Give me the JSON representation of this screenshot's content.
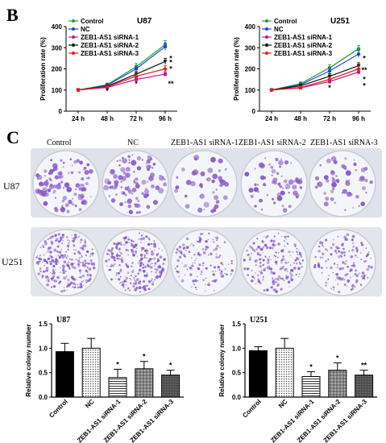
{
  "panel_b_letter": "B",
  "panel_c_letter": "C",
  "colors": {
    "Control": "#1aa039",
    "NC": "#2244cc",
    "ZEB1-AS1 siRNA-1": "#c2188a",
    "ZEB1-AS1 siRNA-2": "#111111",
    "ZEB1-AS1 siRNA-3": "#e0201c",
    "stain": "#8a5cc8",
    "plate_bg": "#eef0f4"
  },
  "photo": {
    "headers": [
      "Control",
      "NC",
      "ZEB1-AS1 siRNA-1",
      "ZEB1-AS1 siRNA-2",
      "ZEB1-AS1 siRNA-3"
    ],
    "rows": [
      "U87",
      "U251"
    ],
    "density_u87": [
      0.75,
      0.7,
      0.35,
      0.45,
      0.4
    ],
    "density_u251": [
      0.9,
      0.85,
      0.45,
      0.65,
      0.5
    ]
  },
  "chart_data": [
    {
      "type": "line",
      "title": "U87",
      "xlabel": "",
      "ylabel": "Proliferation rate (%)",
      "categories": [
        "24 h",
        "48 h",
        "72 h",
        "96 h"
      ],
      "ylim": [
        0,
        400
      ],
      "yticks": [
        0,
        100,
        200,
        300,
        400
      ],
      "legend_position": "top-left",
      "series": [
        {
          "name": "Control",
          "values": [
            100,
            125,
            210,
            315
          ],
          "errors": [
            4,
            8,
            15,
            18
          ],
          "marker": "circle"
        },
        {
          "name": "NC",
          "values": [
            100,
            122,
            200,
            305
          ],
          "errors": [
            4,
            8,
            14,
            18
          ],
          "marker": "circle"
        },
        {
          "name": "ZEB1-AS1 siRNA-1",
          "values": [
            100,
            112,
            150,
            175
          ],
          "errors": [
            4,
            6,
            10,
            12
          ],
          "marker": "square"
        },
        {
          "name": "ZEB1-AS1 siRNA-2",
          "values": [
            100,
            118,
            175,
            235
          ],
          "errors": [
            4,
            7,
            12,
            15
          ],
          "marker": "triangle"
        },
        {
          "name": "ZEB1-AS1 siRNA-3",
          "values": [
            100,
            115,
            165,
            200
          ],
          "errors": [
            4,
            6,
            11,
            14
          ],
          "marker": "diamond"
        }
      ],
      "annotations": [
        {
          "x": "48 h",
          "y": 95,
          "text": "*"
        },
        {
          "x": "72 h",
          "y": 130,
          "text": "*"
        },
        {
          "x": "96 h",
          "y": 250,
          "text": "*"
        },
        {
          "x": "96 h",
          "y": 230,
          "text": "*"
        },
        {
          "x": "96 h",
          "y": 200,
          "text": "*"
        },
        {
          "x": "96 h",
          "y": 130,
          "text": "**"
        }
      ]
    },
    {
      "type": "line",
      "title": "U251",
      "xlabel": "",
      "ylabel": "Proliferation rate (%)",
      "categories": [
        "24 h",
        "48 h",
        "72 h",
        "96 h"
      ],
      "ylim": [
        0,
        400
      ],
      "yticks": [
        0,
        100,
        200,
        300,
        400
      ],
      "legend_position": "top-left",
      "series": [
        {
          "name": "Control",
          "values": [
            100,
            130,
            205,
            295
          ],
          "errors": [
            4,
            8,
            15,
            16
          ],
          "marker": "circle"
        },
        {
          "name": "NC",
          "values": [
            100,
            125,
            190,
            270
          ],
          "errors": [
            4,
            8,
            15,
            16
          ],
          "marker": "circle"
        },
        {
          "name": "ZEB1-AS1 siRNA-1",
          "values": [
            100,
            110,
            140,
            185
          ],
          "errors": [
            4,
            6,
            10,
            12
          ],
          "marker": "square"
        },
        {
          "name": "ZEB1-AS1 siRNA-2",
          "values": [
            100,
            120,
            165,
            215
          ],
          "errors": [
            4,
            7,
            12,
            14
          ],
          "marker": "triangle"
        },
        {
          "name": "ZEB1-AS1 siRNA-3",
          "values": [
            100,
            112,
            150,
            200
          ],
          "errors": [
            4,
            6,
            10,
            12
          ],
          "marker": "diamond"
        }
      ],
      "annotations": [
        {
          "x": "72 h",
          "y": 110,
          "text": "*"
        },
        {
          "x": "96 h",
          "y": 250,
          "text": "*"
        },
        {
          "x": "96 h",
          "y": 195,
          "text": "**"
        },
        {
          "x": "96 h",
          "y": 150,
          "text": "*"
        },
        {
          "x": "96 h",
          "y": 120,
          "text": "*"
        }
      ]
    },
    {
      "type": "bar",
      "title": "U87",
      "xlabel": "",
      "ylabel": "Relative colony number",
      "categories": [
        "Control",
        "NC",
        "ZEB1-AS1 siRNA-1",
        "ZEB1-AS1 siRNA-2",
        "ZEB1-AS1 siRNA-3"
      ],
      "values": [
        0.93,
        1.0,
        0.4,
        0.58,
        0.45
      ],
      "errors": [
        0.17,
        0.2,
        0.17,
        0.15,
        0.1
      ],
      "annotations": [
        "",
        "",
        "*",
        "*",
        "*"
      ],
      "ylim": [
        0,
        1.5
      ],
      "yticks": [
        0.0,
        0.5,
        1.0,
        1.5
      ],
      "ytick_labels": [
        "0.0",
        "0.5",
        "1.0",
        "1.5"
      ],
      "fills": [
        "solid",
        "dots",
        "hlines",
        "grid",
        "dense"
      ]
    },
    {
      "type": "bar",
      "title": "U251",
      "xlabel": "",
      "ylabel": "Relative colony number",
      "categories": [
        "Control",
        "NC",
        "ZEB1-AS1 siRNA-1",
        "ZEB1-AS1 siRNA-2",
        "ZEB1-AS1 siRNA-3"
      ],
      "values": [
        0.95,
        1.0,
        0.42,
        0.55,
        0.45
      ],
      "errors": [
        0.08,
        0.2,
        0.1,
        0.15,
        0.1
      ],
      "annotations": [
        "",
        "",
        "*",
        "*",
        "**"
      ],
      "ylim": [
        0,
        1.5
      ],
      "yticks": [
        0.0,
        0.5,
        1.0,
        1.5
      ],
      "ytick_labels": [
        "0.0",
        "0.5",
        "1.0",
        "1.5"
      ],
      "fills": [
        "solid",
        "dots",
        "hlines",
        "grid",
        "dense"
      ]
    }
  ]
}
